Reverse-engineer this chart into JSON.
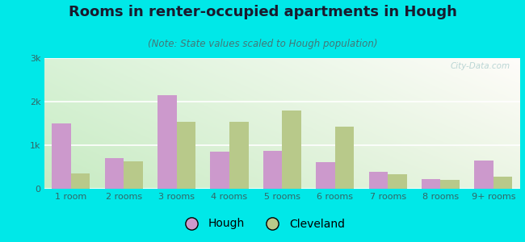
{
  "title": "Rooms in renter-occupied apartments in Hough",
  "subtitle": "(Note: State values scaled to Hough population)",
  "categories": [
    "1 room",
    "2 rooms",
    "3 rooms",
    "4 rooms",
    "5 rooms",
    "6 rooms",
    "7 rooms",
    "8 rooms",
    "9+ rooms"
  ],
  "hough_values": [
    1500,
    700,
    2150,
    850,
    870,
    620,
    380,
    220,
    650
  ],
  "cleveland_values": [
    350,
    630,
    1530,
    1530,
    1800,
    1430,
    330,
    210,
    280
  ],
  "hough_color": "#cc99cc",
  "cleveland_color": "#b8c98a",
  "background_outer": "#00e8e8",
  "ylim": [
    0,
    3000
  ],
  "yticks": [
    0,
    1000,
    2000,
    3000
  ],
  "ytick_labels": [
    "0",
    "1k",
    "2k",
    "3k"
  ],
  "bar_width": 0.36,
  "title_fontsize": 13,
  "subtitle_fontsize": 8.5,
  "axis_label_fontsize": 8,
  "legend_fontsize": 10,
  "watermark": "City-Data.com"
}
